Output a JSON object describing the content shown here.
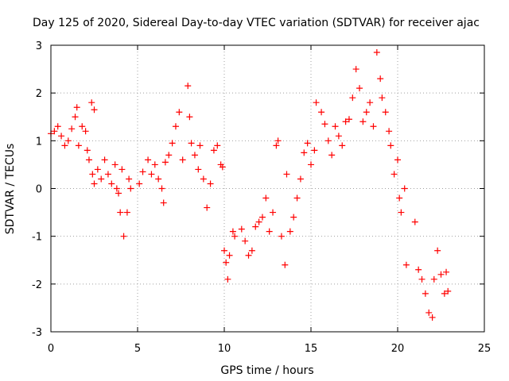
{
  "chart_data": {
    "type": "scatter",
    "title": "Day 125 of 2020, Sidereal Day-to-day VTEC variation (SDTVAR) for receiver ajac",
    "xlabel": "GPS time / hours",
    "ylabel": "SDTVAR / TECUs",
    "xlim": [
      0,
      25
    ],
    "ylim": [
      -3,
      3
    ],
    "xticks": [
      "0",
      "5",
      "10",
      "15",
      "20",
      "25"
    ],
    "yticks": [
      "-3",
      "-2",
      "-1",
      "0",
      "1",
      "2",
      "3"
    ],
    "grid": true,
    "marker": "plus",
    "color": "#ff0000",
    "series": [
      {
        "name": "SDTVAR",
        "points": [
          [
            0.0,
            1.15
          ],
          [
            0.2,
            1.2
          ],
          [
            0.4,
            1.3
          ],
          [
            0.6,
            1.1
          ],
          [
            0.8,
            0.9
          ],
          [
            1.0,
            1.0
          ],
          [
            1.2,
            1.25
          ],
          [
            1.4,
            1.5
          ],
          [
            1.5,
            1.7
          ],
          [
            1.6,
            0.9
          ],
          [
            1.8,
            1.3
          ],
          [
            2.0,
            1.2
          ],
          [
            2.1,
            0.8
          ],
          [
            2.2,
            0.6
          ],
          [
            2.35,
            1.8
          ],
          [
            2.5,
            1.65
          ],
          [
            2.4,
            0.3
          ],
          [
            2.5,
            0.1
          ],
          [
            2.7,
            0.4
          ],
          [
            2.9,
            0.2
          ],
          [
            3.1,
            0.6
          ],
          [
            3.3,
            0.3
          ],
          [
            3.5,
            0.1
          ],
          [
            3.7,
            0.5
          ],
          [
            3.8,
            0.0
          ],
          [
            3.9,
            -0.1
          ],
          [
            4.0,
            -0.5
          ],
          [
            4.1,
            0.4
          ],
          [
            4.2,
            -1.0
          ],
          [
            4.4,
            -0.5
          ],
          [
            4.5,
            0.2
          ],
          [
            4.6,
            0.0
          ],
          [
            5.1,
            0.1
          ],
          [
            5.3,
            0.35
          ],
          [
            5.6,
            0.6
          ],
          [
            5.8,
            0.3
          ],
          [
            6.0,
            0.5
          ],
          [
            6.2,
            0.2
          ],
          [
            6.4,
            0.0
          ],
          [
            6.5,
            -0.3
          ],
          [
            6.6,
            0.55
          ],
          [
            6.8,
            0.7
          ],
          [
            7.0,
            0.95
          ],
          [
            7.2,
            1.3
          ],
          [
            7.4,
            1.6
          ],
          [
            7.6,
            0.6
          ],
          [
            7.9,
            2.15
          ],
          [
            8.0,
            1.5
          ],
          [
            8.1,
            0.95
          ],
          [
            8.3,
            0.7
          ],
          [
            8.5,
            0.4
          ],
          [
            8.6,
            0.9
          ],
          [
            8.8,
            0.2
          ],
          [
            9.0,
            -0.4
          ],
          [
            9.2,
            0.1
          ],
          [
            9.4,
            0.8
          ],
          [
            9.6,
            0.9
          ],
          [
            9.8,
            0.5
          ],
          [
            9.9,
            0.45
          ],
          [
            10.0,
            -1.3
          ],
          [
            10.1,
            -1.55
          ],
          [
            10.2,
            -1.9
          ],
          [
            10.3,
            -1.4
          ],
          [
            10.5,
            -0.9
          ],
          [
            10.6,
            -1.0
          ],
          [
            11.0,
            -0.85
          ],
          [
            11.2,
            -1.1
          ],
          [
            11.4,
            -1.4
          ],
          [
            11.6,
            -1.3
          ],
          [
            11.8,
            -0.8
          ],
          [
            12.0,
            -0.7
          ],
          [
            12.2,
            -0.6
          ],
          [
            12.4,
            -0.2
          ],
          [
            12.6,
            -0.9
          ],
          [
            12.8,
            -0.5
          ],
          [
            13.0,
            0.9
          ],
          [
            13.1,
            1.0
          ],
          [
            13.3,
            -1.0
          ],
          [
            13.5,
            -1.6
          ],
          [
            13.6,
            0.3
          ],
          [
            13.8,
            -0.9
          ],
          [
            14.0,
            -0.6
          ],
          [
            14.2,
            -0.2
          ],
          [
            14.4,
            0.2
          ],
          [
            14.6,
            0.75
          ],
          [
            14.8,
            0.95
          ],
          [
            15.0,
            0.5
          ],
          [
            15.2,
            0.8
          ],
          [
            15.3,
            1.8
          ],
          [
            15.6,
            1.6
          ],
          [
            15.8,
            1.35
          ],
          [
            16.0,
            1.0
          ],
          [
            16.2,
            0.7
          ],
          [
            16.4,
            1.3
          ],
          [
            16.6,
            1.1
          ],
          [
            16.8,
            0.9
          ],
          [
            17.0,
            1.4
          ],
          [
            17.2,
            1.45
          ],
          [
            17.4,
            1.9
          ],
          [
            17.6,
            2.5
          ],
          [
            17.8,
            2.1
          ],
          [
            18.0,
            1.4
          ],
          [
            18.2,
            1.6
          ],
          [
            18.4,
            1.8
          ],
          [
            18.6,
            1.3
          ],
          [
            18.8,
            2.85
          ],
          [
            19.0,
            2.3
          ],
          [
            19.1,
            1.9
          ],
          [
            19.3,
            1.6
          ],
          [
            19.5,
            1.2
          ],
          [
            19.6,
            0.9
          ],
          [
            19.8,
            0.3
          ],
          [
            20.0,
            0.6
          ],
          [
            20.1,
            -0.2
          ],
          [
            20.2,
            -0.5
          ],
          [
            20.4,
            0.0
          ],
          [
            20.5,
            -1.6
          ],
          [
            21.0,
            -0.7
          ],
          [
            21.2,
            -1.7
          ],
          [
            21.4,
            -1.9
          ],
          [
            21.6,
            -2.2
          ],
          [
            21.8,
            -2.6
          ],
          [
            22.0,
            -2.7
          ],
          [
            22.1,
            -1.9
          ],
          [
            22.3,
            -1.3
          ],
          [
            22.5,
            -1.8
          ],
          [
            22.7,
            -2.2
          ],
          [
            22.8,
            -1.75
          ],
          [
            22.9,
            -2.15
          ]
        ]
      }
    ]
  }
}
